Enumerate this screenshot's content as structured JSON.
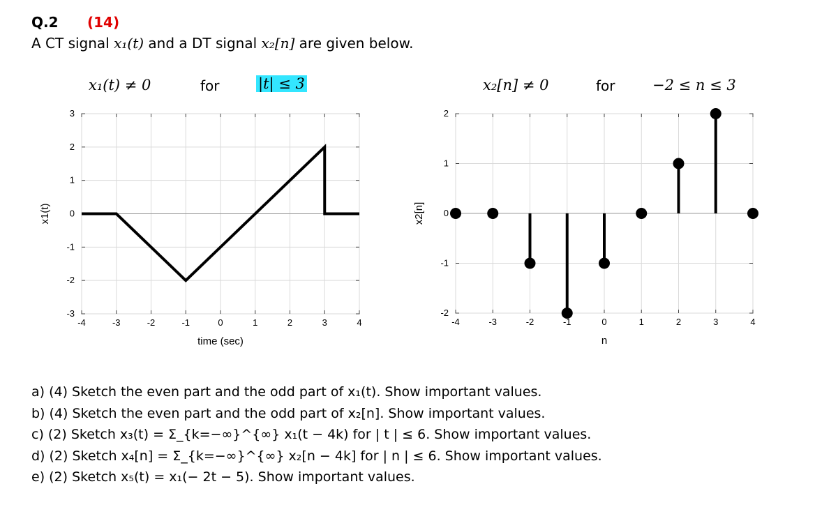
{
  "question": {
    "number": "Q.2",
    "points": "(14)",
    "intro_prefix": "A CT signal ",
    "intro_x1": "x₁(t)",
    "intro_mid": " and a DT signal ",
    "intro_x2": "x₂[n]",
    "intro_suffix": " are given below."
  },
  "conditions": {
    "left_expr": "x₁(t) ≠ 0",
    "left_for": "for",
    "left_range": "|t| ≤ 3",
    "right_expr": "x₂[n] ≠ 0",
    "right_for": "for",
    "right_range": "−2 ≤ n ≤ 3"
  },
  "chart_data": [
    {
      "type": "line",
      "title": "",
      "xlabel": "time (sec)",
      "ylabel": "x1(t)",
      "xlim": [
        -4,
        4
      ],
      "ylim": [
        -3,
        3
      ],
      "xticks": [
        -4,
        -3,
        -2,
        -1,
        0,
        1,
        2,
        3,
        4
      ],
      "yticks": [
        -3,
        -2,
        -1,
        0,
        1,
        2,
        3
      ],
      "grid": true,
      "series": [
        {
          "x": [
            -4,
            -3,
            -1,
            3,
            3,
            4
          ],
          "y": [
            0,
            0,
            -2,
            2,
            0,
            0
          ]
        }
      ]
    },
    {
      "type": "stem",
      "title": "",
      "xlabel": "n",
      "ylabel": "x2[n]",
      "xlim": [
        -4,
        4
      ],
      "ylim": [
        -2,
        2
      ],
      "xticks": [
        -4,
        -3,
        -2,
        -1,
        0,
        1,
        2,
        3,
        4
      ],
      "yticks": [
        -2,
        -1,
        0,
        1,
        2
      ],
      "grid": true,
      "series": [
        {
          "x": [
            -4,
            -3,
            -2,
            -1,
            0,
            1,
            2,
            3,
            4
          ],
          "y": [
            0,
            0,
            -1,
            -2,
            -1,
            0,
            1,
            2,
            0
          ]
        }
      ]
    }
  ],
  "parts": [
    "a) (4) Sketch the even part and the odd part of x₁(t). Show important values.",
    "b) (4) Sketch the even part and the odd part of x₂[n]. Show important values.",
    "c) (2) Sketch x₃(t) = Σ_{k=−∞}^{∞} x₁(t − 4k)  for | t | ≤ 6. Show important values.",
    "d) (2) Sketch x₄[n] = Σ_{k=−∞}^{∞} x₂[n − 4k] for | n | ≤ 6. Show important values.",
    "e) (2) Sketch x₅(t) = x₁(− 2t − 5). Show important values."
  ]
}
